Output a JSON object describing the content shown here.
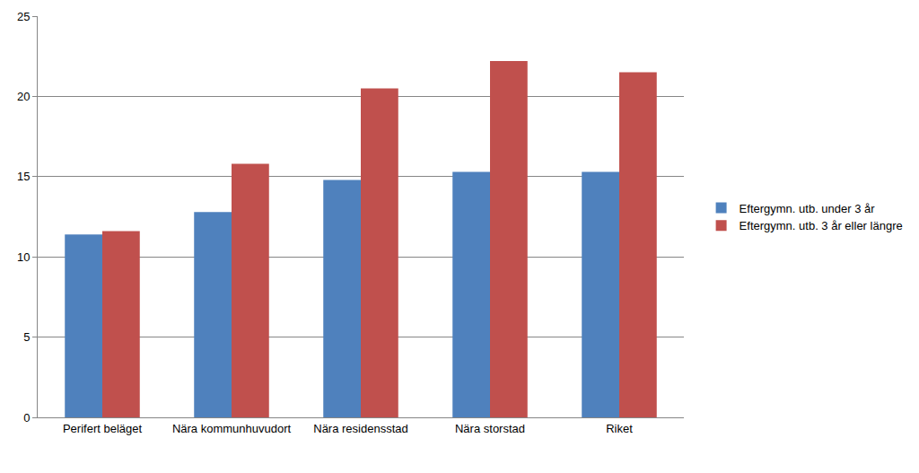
{
  "chart_data": {
    "type": "bar",
    "categories": [
      "Perifert beläget",
      "Nära kommunhuvudort",
      "Nära residensstad",
      "Nära storstad",
      "Riket"
    ],
    "series": [
      {
        "name": "Eftergymn. utb. under 3 år",
        "color": "#4f81bd",
        "values": [
          11.4,
          12.8,
          14.8,
          15.3,
          15.3
        ]
      },
      {
        "name": "Eftergymn. utb. 3 år eller längre",
        "color": "#c0504d",
        "values": [
          11.6,
          15.8,
          20.5,
          22.2,
          21.5
        ]
      }
    ],
    "ylim": [
      0,
      25
    ],
    "yticks": [
      0,
      5,
      10,
      15,
      20,
      25
    ],
    "grid": true,
    "legend": "right"
  }
}
